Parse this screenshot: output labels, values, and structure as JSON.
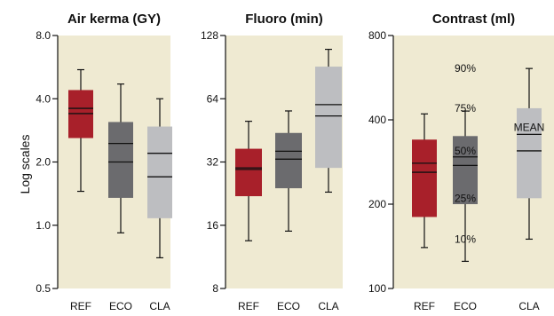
{
  "chart_data": {
    "type": "box",
    "ylabel": "Log scales",
    "y_scale": "log",
    "colors": {
      "background": "#EFEAD2",
      "REF": "#A8202A",
      "ECO": "#6B6B6E",
      "CLA": "#BDBEC1",
      "line": "#111111"
    },
    "panels": [
      {
        "title": "Air kerma (GY)",
        "yticks": [
          0.5,
          1.0,
          2.0,
          4.0,
          8.0
        ],
        "ytick_labels": [
          "0.5",
          "1.0",
          "2.0",
          "4.0",
          "8.0"
        ],
        "ylim": [
          0.5,
          8.0
        ],
        "categories": [
          "REF",
          "ECO",
          "CLA"
        ],
        "boxes": [
          {
            "category": "REF",
            "min": 1.45,
            "q1": 2.6,
            "median": 3.4,
            "mean": 3.6,
            "q3": 4.4,
            "max": 5.5
          },
          {
            "category": "ECO",
            "min": 0.92,
            "q1": 1.35,
            "median": 2.0,
            "mean": 2.45,
            "q3": 3.1,
            "max": 4.7
          },
          {
            "category": "CLA",
            "min": 0.7,
            "q1": 1.08,
            "median": 1.7,
            "mean": 2.2,
            "q3": 2.95,
            "max": 4.0
          }
        ]
      },
      {
        "title": "Fluoro (min)",
        "yticks": [
          8,
          16,
          32,
          64,
          128
        ],
        "ytick_labels": [
          "8",
          "16",
          "32",
          "64",
          "128"
        ],
        "ylim": [
          8,
          128
        ],
        "categories": [
          "REF",
          "ECO",
          "CLA"
        ],
        "boxes": [
          {
            "category": "REF",
            "min": 13.5,
            "q1": 22,
            "median": 29.5,
            "mean": 30,
            "q3": 37,
            "max": 50
          },
          {
            "category": "ECO",
            "min": 15,
            "q1": 24,
            "median": 33,
            "mean": 36,
            "q3": 44,
            "max": 56
          },
          {
            "category": "CLA",
            "min": 23,
            "q1": 30,
            "median": 53,
            "mean": 60,
            "q3": 91,
            "max": 110
          }
        ]
      },
      {
        "title": "Contrast (ml)",
        "yticks": [
          100,
          200,
          400,
          800
        ],
        "ytick_labels": [
          "100",
          "200",
          "400",
          "800"
        ],
        "ylim": [
          100,
          800
        ],
        "categories": [
          "REF",
          "ECO",
          "CLA"
        ],
        "boxes": [
          {
            "category": "REF",
            "min": 140,
            "q1": 180,
            "median": 260,
            "mean": 280,
            "q3": 340,
            "max": 420
          },
          {
            "category": "ECO",
            "min": 125,
            "q1": 200,
            "median": 275,
            "mean": 295,
            "q3": 350,
            "max": 430
          },
          {
            "category": "CLA",
            "min": 150,
            "q1": 210,
            "median": 310,
            "mean": 355,
            "q3": 440,
            "max": 610
          }
        ],
        "legend": {
          "mean_label": "MEAN",
          "percentiles": [
            {
              "label": "90%",
              "stat": "max"
            },
            {
              "label": "75%",
              "stat": "q3"
            },
            {
              "label": "50%",
              "stat": "median"
            },
            {
              "label": "25%",
              "stat": "q1"
            },
            {
              "label": "10%",
              "stat": "min"
            }
          ]
        }
      }
    ]
  }
}
